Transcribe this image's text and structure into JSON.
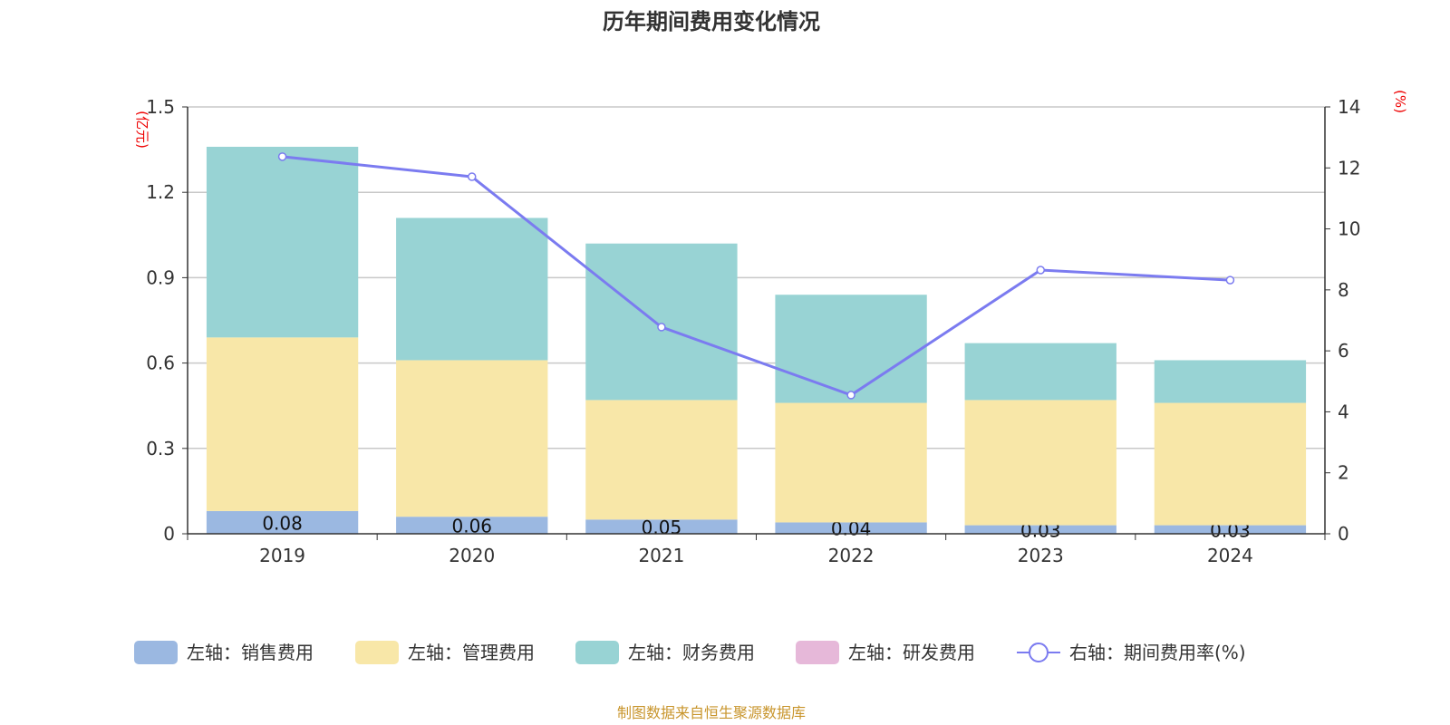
{
  "chart_data": {
    "type": "bar",
    "title": "历年期间费用变化情况",
    "left_unit": "(亿元)",
    "right_unit": "(%)",
    "categories": [
      "2019",
      "2020",
      "2021",
      "2022",
      "2023",
      "2024"
    ],
    "left_ylim": [
      0,
      1.5
    ],
    "left_ticks": [
      "0",
      "0.3",
      "0.6",
      "0.9",
      "1.2",
      "1.5"
    ],
    "right_ylim": [
      0,
      14
    ],
    "right_ticks": [
      "0",
      "2",
      "4",
      "6",
      "8",
      "10",
      "12",
      "14"
    ],
    "series": [
      {
        "name": "左轴：销售费用",
        "axis": "left",
        "kind": "bar",
        "color": "#9bb8e1",
        "values": [
          0.08,
          0.06,
          0.05,
          0.04,
          0.03,
          0.03
        ],
        "labels": [
          "0.08",
          "0.06",
          "0.05",
          "0.04",
          "0.03",
          "0.03"
        ]
      },
      {
        "name": "左轴：管理费用",
        "axis": "left",
        "kind": "bar",
        "color": "#f8e7a8",
        "values": [
          0.61,
          0.55,
          0.42,
          0.42,
          0.44,
          0.43
        ]
      },
      {
        "name": "左轴：财务费用",
        "axis": "left",
        "kind": "bar",
        "color": "#98d3d4",
        "values": [
          0.67,
          0.5,
          0.55,
          0.38,
          0.2,
          0.15
        ]
      },
      {
        "name": "左轴：研发费用",
        "axis": "left",
        "kind": "bar",
        "color": "#e6b8d9",
        "values": [
          0,
          0,
          0,
          0,
          0,
          0
        ]
      },
      {
        "name": "右轴：期间费用率(%)",
        "axis": "right",
        "kind": "line",
        "color": "#7b7bf0",
        "values": [
          12.37,
          11.71,
          6.78,
          4.55,
          8.65,
          8.32
        ]
      }
    ],
    "grid": true,
    "legend_position": "bottom"
  },
  "source": "制图数据来自恒生聚源数据库"
}
